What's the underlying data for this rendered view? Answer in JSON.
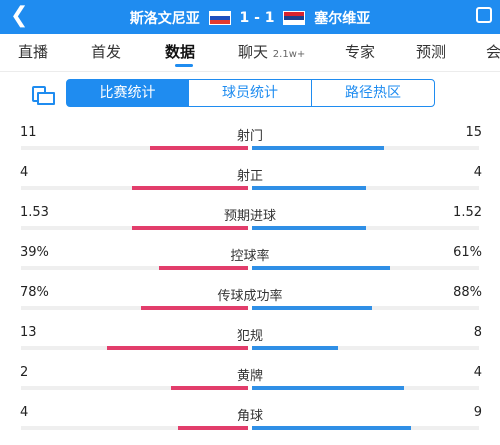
{
  "header": {
    "home_team": "斯洛文尼亚",
    "score": "1 - 1",
    "away_team": "塞尔维亚",
    "back_icon": "chevron-left-icon"
  },
  "tabs": [
    {
      "label": "直播"
    },
    {
      "label": "首发"
    },
    {
      "label": "数据",
      "active": true
    },
    {
      "label": "聊天",
      "badge": "2.1w+"
    },
    {
      "label": "专家"
    },
    {
      "label": "预测"
    },
    {
      "label": "会"
    }
  ],
  "segments": [
    {
      "label": "比赛统计",
      "active": true
    },
    {
      "label": "球员统计"
    },
    {
      "label": "路径热区"
    }
  ],
  "colors": {
    "accent": "#1f8cf0",
    "home_bar": "#e23d6b",
    "away_bar": "#2f8fe6"
  },
  "stats": [
    {
      "label": "射门",
      "left": "11",
      "right": "15",
      "left_fill": 0.43,
      "right_fill": 0.58
    },
    {
      "label": "射正",
      "left": "4",
      "right": "4",
      "left_fill": 0.51,
      "right_fill": 0.5
    },
    {
      "label": "预期进球",
      "left": "1.53",
      "right": "1.52",
      "left_fill": 0.51,
      "right_fill": 0.5
    },
    {
      "label": "控球率",
      "left": "39%",
      "right": "61%",
      "left_fill": 0.39,
      "right_fill": 0.61
    },
    {
      "label": "传球成功率",
      "left": "78%",
      "right": "88%",
      "left_fill": 0.47,
      "right_fill": 0.53
    },
    {
      "label": "犯规",
      "left": "13",
      "right": "8",
      "left_fill": 0.62,
      "right_fill": 0.38
    },
    {
      "label": "黄牌",
      "left": "2",
      "right": "4",
      "left_fill": 0.34,
      "right_fill": 0.67
    },
    {
      "label": "角球",
      "left": "4",
      "right": "9",
      "left_fill": 0.31,
      "right_fill": 0.7
    }
  ]
}
